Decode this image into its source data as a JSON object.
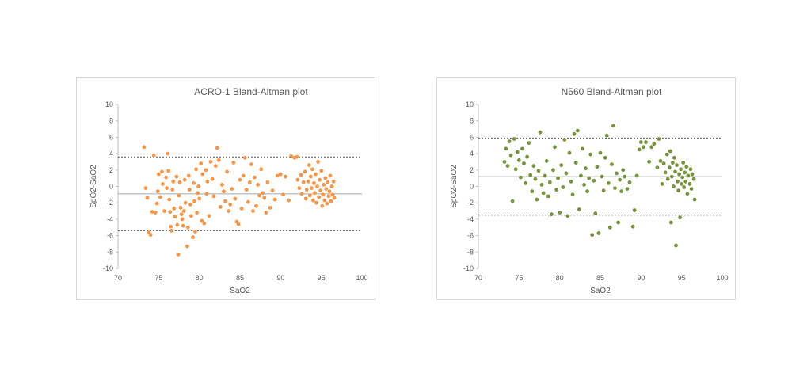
{
  "chart_data": [
    {
      "type": "scatter",
      "title": "ACRO-1   Bland-Altman plot",
      "xlabel": "SaO2",
      "ylabel": "SpO2-SaO2",
      "xlim": [
        70,
        100
      ],
      "ylim": [
        -10,
        10
      ],
      "xticks": [
        70,
        75,
        80,
        85,
        90,
        95,
        100
      ],
      "yticks": [
        -10,
        -8,
        -6,
        -4,
        -2,
        0,
        2,
        4,
        6,
        8,
        10
      ],
      "grid": false,
      "legend": "none",
      "point_color": "#F79646",
      "reference_lines": [
        {
          "y": 3.6,
          "style": "dashed"
        },
        {
          "y": -0.9,
          "style": "solid"
        },
        {
          "y": -5.4,
          "style": "dashed"
        }
      ],
      "points": [
        [
          73.2,
          4.8
        ],
        [
          73.4,
          -0.2
        ],
        [
          73.6,
          -1.4
        ],
        [
          73.8,
          -5.6
        ],
        [
          74.0,
          -5.9
        ],
        [
          74.2,
          -3.1
        ],
        [
          74.4,
          3.8
        ],
        [
          74.6,
          -3.2
        ],
        [
          74.8,
          -2.1
        ],
        [
          74.9,
          -0.6
        ],
        [
          75.0,
          1.5
        ],
        [
          75.2,
          -1.3
        ],
        [
          75.4,
          1.8
        ],
        [
          75.5,
          0.3
        ],
        [
          75.7,
          -3.0
        ],
        [
          75.9,
          1.1
        ],
        [
          76.0,
          -0.2
        ],
        [
          76.1,
          4.0
        ],
        [
          76.2,
          1.9
        ],
        [
          76.3,
          -1.6
        ],
        [
          76.4,
          -3.1
        ],
        [
          76.5,
          -4.9
        ],
        [
          76.6,
          -5.4
        ],
        [
          76.7,
          -0.4
        ],
        [
          76.8,
          0.6
        ],
        [
          76.9,
          -2.7
        ],
        [
          77.0,
          -3.7
        ],
        [
          77.2,
          1.2
        ],
        [
          77.3,
          -4.7
        ],
        [
          77.4,
          -8.3
        ],
        [
          77.5,
          -1.1
        ],
        [
          77.6,
          0.5
        ],
        [
          77.7,
          -2.6
        ],
        [
          77.8,
          -3.4
        ],
        [
          77.9,
          -4.0
        ],
        [
          78.0,
          -4.8
        ],
        [
          78.1,
          -3.0
        ],
        [
          78.2,
          0.8
        ],
        [
          78.3,
          -2.0
        ],
        [
          78.5,
          -7.3
        ],
        [
          78.6,
          -5.0
        ],
        [
          78.7,
          1.3
        ],
        [
          78.8,
          -0.4
        ],
        [
          78.9,
          -2.2
        ],
        [
          79.0,
          -3.6
        ],
        [
          79.2,
          -6.2
        ],
        [
          79.3,
          0.4
        ],
        [
          79.4,
          -1.8
        ],
        [
          79.5,
          -5.5
        ],
        [
          79.6,
          2.1
        ],
        [
          79.7,
          -3.2
        ],
        [
          79.8,
          -0.8
        ],
        [
          79.9,
          0.0
        ],
        [
          80.0,
          -1.5
        ],
        [
          80.2,
          2.8
        ],
        [
          80.3,
          -4.2
        ],
        [
          80.4,
          1.5
        ],
        [
          80.6,
          -4.5
        ],
        [
          80.8,
          2.0
        ],
        [
          80.9,
          -0.9
        ],
        [
          81.0,
          0.6
        ],
        [
          81.2,
          -3.6
        ],
        [
          81.4,
          3.0
        ],
        [
          81.6,
          0.9
        ],
        [
          81.8,
          -1.2
        ],
        [
          82.0,
          2.5
        ],
        [
          82.2,
          4.7
        ],
        [
          82.4,
          3.2
        ],
        [
          82.6,
          -2.5
        ],
        [
          82.8,
          0.2
        ],
        [
          83.0,
          -0.6
        ],
        [
          83.2,
          -1.8
        ],
        [
          83.4,
          1.8
        ],
        [
          83.6,
          -3.0
        ],
        [
          83.8,
          -2.2
        ],
        [
          84.0,
          -0.3
        ],
        [
          84.2,
          2.9
        ],
        [
          84.4,
          -1.5
        ],
        [
          84.6,
          -4.3
        ],
        [
          84.8,
          -4.6
        ],
        [
          85.0,
          0.8
        ],
        [
          85.2,
          -2.7
        ],
        [
          85.4,
          1.3
        ],
        [
          85.6,
          3.5
        ],
        [
          85.8,
          -0.4
        ],
        [
          86.0,
          -1.9
        ],
        [
          86.2,
          0.5
        ],
        [
          86.4,
          2.7
        ],
        [
          86.6,
          -3.0
        ],
        [
          86.8,
          1.1
        ],
        [
          87.0,
          -2.4
        ],
        [
          87.2,
          0.2
        ],
        [
          87.4,
          -1.1
        ],
        [
          87.6,
          2.1
        ],
        [
          87.8,
          -0.8
        ],
        [
          88.0,
          -1.4
        ],
        [
          88.2,
          -3.2
        ],
        [
          88.4,
          0.5
        ],
        [
          88.7,
          -2.6
        ],
        [
          89.0,
          -0.5
        ],
        [
          89.3,
          -1.6
        ],
        [
          89.6,
          1.3
        ],
        [
          90.0,
          1.5
        ],
        [
          90.3,
          -1.0
        ],
        [
          90.6,
          1.2
        ],
        [
          91.0,
          -1.7
        ],
        [
          91.3,
          3.7
        ],
        [
          91.7,
          3.5
        ],
        [
          92.0,
          3.6
        ],
        [
          92.1,
          0.8
        ],
        [
          92.3,
          -0.2
        ],
        [
          92.5,
          1.4
        ],
        [
          92.6,
          -0.9
        ],
        [
          92.8,
          0.5
        ],
        [
          93.0,
          1.8
        ],
        [
          93.1,
          -1.5
        ],
        [
          93.2,
          -0.4
        ],
        [
          93.4,
          0.6
        ],
        [
          93.5,
          2.6
        ],
        [
          93.6,
          -1.1
        ],
        [
          93.7,
          1.2
        ],
        [
          93.8,
          -0.2
        ],
        [
          93.9,
          2.1
        ],
        [
          94.0,
          -1.7
        ],
        [
          94.1,
          0.4
        ],
        [
          94.2,
          -0.8
        ],
        [
          94.3,
          1.5
        ],
        [
          94.4,
          -2.0
        ],
        [
          94.5,
          0.0
        ],
        [
          94.6,
          3.0
        ],
        [
          94.7,
          -1.3
        ],
        [
          94.8,
          0.8
        ],
        [
          94.9,
          -0.5
        ],
        [
          95.0,
          1.9
        ],
        [
          95.1,
          -2.4
        ],
        [
          95.2,
          -1.0
        ],
        [
          95.3,
          0.2
        ],
        [
          95.4,
          -1.7
        ],
        [
          95.5,
          1.0
        ],
        [
          95.6,
          -0.3
        ],
        [
          95.7,
          -2.1
        ],
        [
          95.8,
          0.5
        ],
        [
          95.9,
          -1.2
        ],
        [
          96.0,
          -0.6
        ],
        [
          96.1,
          1.3
        ],
        [
          96.2,
          -1.8
        ],
        [
          96.3,
          0.0
        ],
        [
          96.4,
          -1.0
        ],
        [
          96.5,
          0.6
        ],
        [
          96.6,
          -1.4
        ]
      ]
    },
    {
      "type": "scatter",
      "title": "N560   Bland-Altman plot",
      "xlabel": "SaO2",
      "ylabel": "SpO2-SaO2",
      "xlim": [
        70,
        100
      ],
      "ylim": [
        -10,
        10
      ],
      "xticks": [
        70,
        75,
        80,
        85,
        90,
        95,
        100
      ],
      "yticks": [
        -10,
        -8,
        -6,
        -4,
        -2,
        0,
        2,
        4,
        6,
        8,
        10
      ],
      "grid": false,
      "legend": "none",
      "point_color": "#77933C",
      "reference_lines": [
        {
          "y": 5.9,
          "style": "dashed"
        },
        {
          "y": 1.2,
          "style": "solid"
        },
        {
          "y": -3.5,
          "style": "dashed"
        }
      ],
      "points": [
        [
          73.2,
          3.0
        ],
        [
          73.4,
          4.6
        ],
        [
          73.6,
          2.5
        ],
        [
          73.8,
          5.5
        ],
        [
          74.0,
          3.8
        ],
        [
          74.2,
          -1.8
        ],
        [
          74.4,
          5.8
        ],
        [
          74.6,
          2.1
        ],
        [
          74.8,
          4.2
        ],
        [
          75.0,
          3.2
        ],
        [
          75.2,
          1.1
        ],
        [
          75.4,
          4.6
        ],
        [
          75.6,
          2.8
        ],
        [
          75.8,
          0.4
        ],
        [
          76.0,
          3.6
        ],
        [
          76.2,
          5.3
        ],
        [
          76.4,
          1.4
        ],
        [
          76.6,
          -0.6
        ],
        [
          76.8,
          2.5
        ],
        [
          77.0,
          0.9
        ],
        [
          77.2,
          -1.6
        ],
        [
          77.4,
          1.9
        ],
        [
          77.6,
          6.6
        ],
        [
          77.8,
          0.2
        ],
        [
          78.0,
          -0.8
        ],
        [
          78.2,
          1.3
        ],
        [
          78.4,
          3.1
        ],
        [
          78.6,
          -1.2
        ],
        [
          78.8,
          0.5
        ],
        [
          79.0,
          -3.4
        ],
        [
          79.2,
          2.0
        ],
        [
          79.4,
          4.8
        ],
        [
          79.6,
          -0.4
        ],
        [
          79.8,
          1.0
        ],
        [
          80.0,
          -3.2
        ],
        [
          80.2,
          2.6
        ],
        [
          80.4,
          -0.1
        ],
        [
          80.6,
          5.7
        ],
        [
          80.8,
          1.6
        ],
        [
          81.0,
          -3.6
        ],
        [
          81.2,
          4.1
        ],
        [
          81.4,
          0.6
        ],
        [
          81.6,
          -1.0
        ],
        [
          81.8,
          6.4
        ],
        [
          82.0,
          2.9
        ],
        [
          82.2,
          6.8
        ],
        [
          82.4,
          -2.8
        ],
        [
          82.6,
          1.3
        ],
        [
          82.8,
          4.6
        ],
        [
          83.0,
          0.2
        ],
        [
          83.2,
          2.2
        ],
        [
          83.4,
          -0.6
        ],
        [
          83.6,
          1.0
        ],
        [
          83.8,
          3.9
        ],
        [
          84.0,
          -5.9
        ],
        [
          84.2,
          0.7
        ],
        [
          84.4,
          -3.3
        ],
        [
          84.6,
          2.4
        ],
        [
          84.8,
          -5.7
        ],
        [
          85.0,
          4.1
        ],
        [
          85.2,
          1.2
        ],
        [
          85.4,
          -0.5
        ],
        [
          85.6,
          3.5
        ],
        [
          85.8,
          6.2
        ],
        [
          86.0,
          0.4
        ],
        [
          86.2,
          -5.0
        ],
        [
          86.4,
          2.7
        ],
        [
          86.6,
          7.4
        ],
        [
          86.8,
          -0.2
        ],
        [
          87.0,
          1.6
        ],
        [
          87.2,
          -4.4
        ],
        [
          87.4,
          0.8
        ],
        [
          87.6,
          -0.6
        ],
        [
          87.8,
          2.0
        ],
        [
          88.0,
          1.2
        ],
        [
          88.3,
          -0.3
        ],
        [
          88.6,
          0.5
        ],
        [
          89.0,
          -4.9
        ],
        [
          89.2,
          -2.9
        ],
        [
          89.5,
          1.3
        ],
        [
          89.8,
          4.5
        ],
        [
          90.0,
          5.4
        ],
        [
          90.3,
          4.8
        ],
        [
          90.6,
          5.4
        ],
        [
          91.0,
          3.0
        ],
        [
          91.3,
          4.8
        ],
        [
          91.6,
          5.2
        ],
        [
          92.0,
          2.3
        ],
        [
          92.2,
          5.8
        ],
        [
          92.4,
          3.1
        ],
        [
          92.6,
          0.3
        ],
        [
          92.8,
          2.8
        ],
        [
          93.0,
          1.7
        ],
        [
          93.2,
          3.9
        ],
        [
          93.3,
          0.9
        ],
        [
          93.5,
          2.3
        ],
        [
          93.6,
          4.3
        ],
        [
          93.7,
          -4.4
        ],
        [
          93.8,
          1.2
        ],
        [
          93.9,
          2.9
        ],
        [
          94.0,
          0.0
        ],
        [
          94.1,
          3.5
        ],
        [
          94.2,
          1.8
        ],
        [
          94.3,
          -7.2
        ],
        [
          94.4,
          2.6
        ],
        [
          94.5,
          0.6
        ],
        [
          94.6,
          -0.5
        ],
        [
          94.7,
          1.5
        ],
        [
          94.8,
          -3.8
        ],
        [
          94.9,
          2.1
        ],
        [
          95.0,
          0.3
        ],
        [
          95.1,
          1.1
        ],
        [
          95.2,
          2.9
        ],
        [
          95.3,
          -0.1
        ],
        [
          95.4,
          1.7
        ],
        [
          95.5,
          0.6
        ],
        [
          95.6,
          2.4
        ],
        [
          95.7,
          -0.9
        ],
        [
          95.8,
          1.3
        ],
        [
          96.0,
          0.3
        ],
        [
          96.1,
          2.1
        ],
        [
          96.2,
          -0.3
        ],
        [
          96.3,
          1.5
        ],
        [
          96.5,
          0.9
        ],
        [
          96.6,
          -1.6
        ]
      ]
    }
  ]
}
